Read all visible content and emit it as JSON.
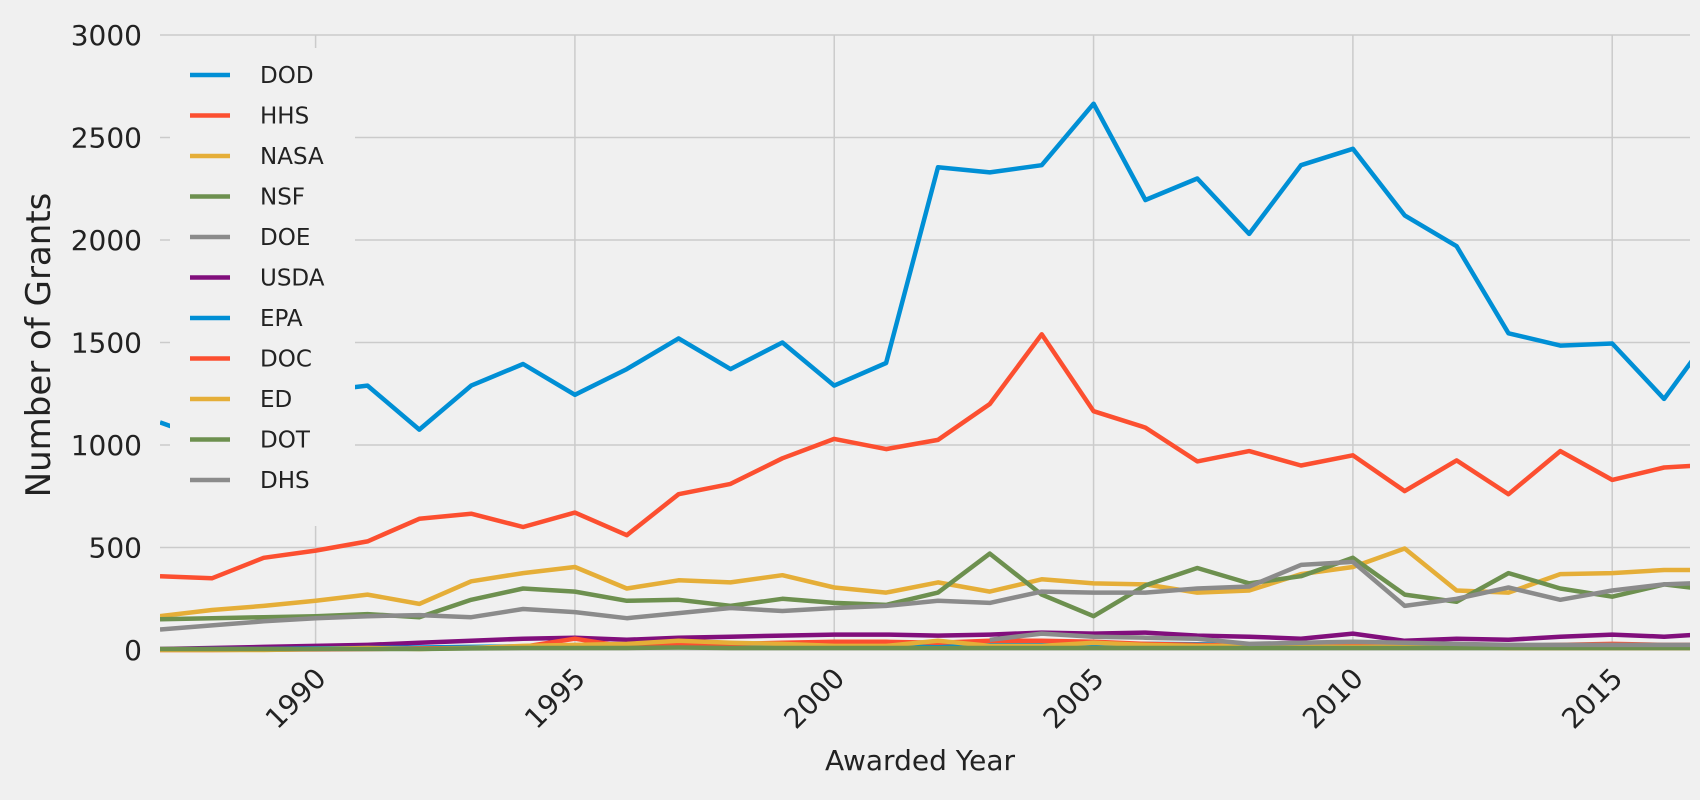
{
  "chart_data": {
    "type": "line",
    "title": "",
    "xlabel": "Awarded Year",
    "ylabel": "Number of Grants",
    "xlim": [
      1987,
      2016.5
    ],
    "ylim": [
      0,
      3000
    ],
    "x_ticks": [
      1990,
      1995,
      2000,
      2005,
      2010,
      2015
    ],
    "y_ticks": [
      0,
      500,
      1000,
      1500,
      2000,
      2500,
      3000
    ],
    "grid": true,
    "legend_position": "upper-left",
    "x": [
      1987,
      1988,
      1989,
      1990,
      1991,
      1992,
      1993,
      1994,
      1995,
      1996,
      1997,
      1998,
      1999,
      2000,
      2001,
      2002,
      2003,
      2004,
      2005,
      2006,
      2007,
      2008,
      2009,
      2010,
      2011,
      2012,
      2013,
      2014,
      2015,
      2016,
      2017
    ],
    "series": [
      {
        "name": "DOD",
        "color": "#008fd5",
        "values": [
          1110,
          1020,
          1250,
          1260,
          1290,
          1075,
          1290,
          1395,
          1245,
          1370,
          1520,
          1370,
          1500,
          1290,
          1400,
          2355,
          2330,
          2365,
          2665,
          2195,
          2300,
          2030,
          2365,
          2445,
          2120,
          1970,
          1545,
          1485,
          1495,
          1225,
          1570
        ]
      },
      {
        "name": "HHS",
        "color": "#fc4f30",
        "values": [
          360,
          350,
          450,
          485,
          530,
          640,
          665,
          600,
          670,
          560,
          760,
          810,
          935,
          1030,
          980,
          1025,
          1200,
          1540,
          1165,
          1085,
          920,
          970,
          900,
          950,
          775,
          925,
          760,
          970,
          830,
          890,
          905
        ]
      },
      {
        "name": "NASA",
        "color": "#e5ae38",
        "values": [
          165,
          195,
          215,
          240,
          270,
          225,
          335,
          375,
          405,
          300,
          340,
          330,
          365,
          305,
          280,
          330,
          285,
          345,
          325,
          320,
          280,
          290,
          370,
          405,
          495,
          290,
          280,
          370,
          375,
          390,
          390
        ]
      },
      {
        "name": "NSF",
        "color": "#6d904f",
        "values": [
          150,
          155,
          160,
          165,
          175,
          160,
          245,
          300,
          285,
          240,
          245,
          215,
          250,
          230,
          220,
          280,
          470,
          270,
          165,
          315,
          400,
          325,
          360,
          450,
          270,
          235,
          375,
          300,
          260,
          320,
          290
        ]
      },
      {
        "name": "DOE",
        "color": "#8b8b8b",
        "values": [
          100,
          120,
          140,
          155,
          165,
          170,
          160,
          200,
          185,
          155,
          180,
          205,
          190,
          205,
          215,
          240,
          230,
          285,
          280,
          280,
          300,
          310,
          415,
          430,
          215,
          250,
          305,
          245,
          290,
          320,
          330
        ]
      },
      {
        "name": "USDA",
        "color": "#810f7c",
        "values": [
          5,
          10,
          15,
          20,
          25,
          35,
          45,
          55,
          60,
          50,
          60,
          65,
          70,
          75,
          75,
          70,
          75,
          85,
          80,
          85,
          70,
          65,
          55,
          80,
          45,
          55,
          50,
          65,
          75,
          65,
          80
        ]
      },
      {
        "name": "EPA",
        "color": "#008fd5",
        "values": [
          3,
          5,
          5,
          8,
          10,
          12,
          15,
          18,
          20,
          15,
          20,
          20,
          22,
          25,
          25,
          25,
          28,
          30,
          30,
          30,
          28,
          25,
          25,
          30,
          20,
          20,
          20,
          20,
          20,
          20,
          20
        ]
      },
      {
        "name": "DOC",
        "color": "#fc4f30",
        "values": [
          0,
          0,
          2,
          3,
          5,
          8,
          10,
          15,
          55,
          15,
          25,
          30,
          35,
          40,
          40,
          35,
          45,
          45,
          40,
          30,
          25,
          20,
          20,
          25,
          20,
          20,
          20,
          25,
          30,
          25,
          25
        ]
      },
      {
        "name": "ED",
        "color": "#e5ae38",
        "values": [
          0,
          0,
          0,
          5,
          10,
          5,
          10,
          20,
          25,
          30,
          45,
          35,
          30,
          20,
          20,
          45,
          20,
          20,
          35,
          25,
          20,
          20,
          15,
          15,
          15,
          15,
          10,
          10,
          10,
          10,
          10
        ]
      },
      {
        "name": "DOT",
        "color": "#6d904f",
        "values": [
          5,
          5,
          5,
          5,
          5,
          5,
          8,
          10,
          10,
          10,
          12,
          10,
          10,
          10,
          10,
          10,
          10,
          10,
          10,
          10,
          10,
          10,
          10,
          10,
          10,
          10,
          10,
          10,
          10,
          10,
          10
        ]
      },
      {
        "name": "DHS",
        "color": "#8b8b8b",
        "values": [
          null,
          null,
          null,
          null,
          null,
          null,
          null,
          null,
          null,
          null,
          null,
          null,
          null,
          null,
          null,
          null,
          50,
          80,
          65,
          60,
          55,
          30,
          35,
          40,
          35,
          30,
          25,
          25,
          25,
          25,
          25
        ]
      }
    ]
  }
}
